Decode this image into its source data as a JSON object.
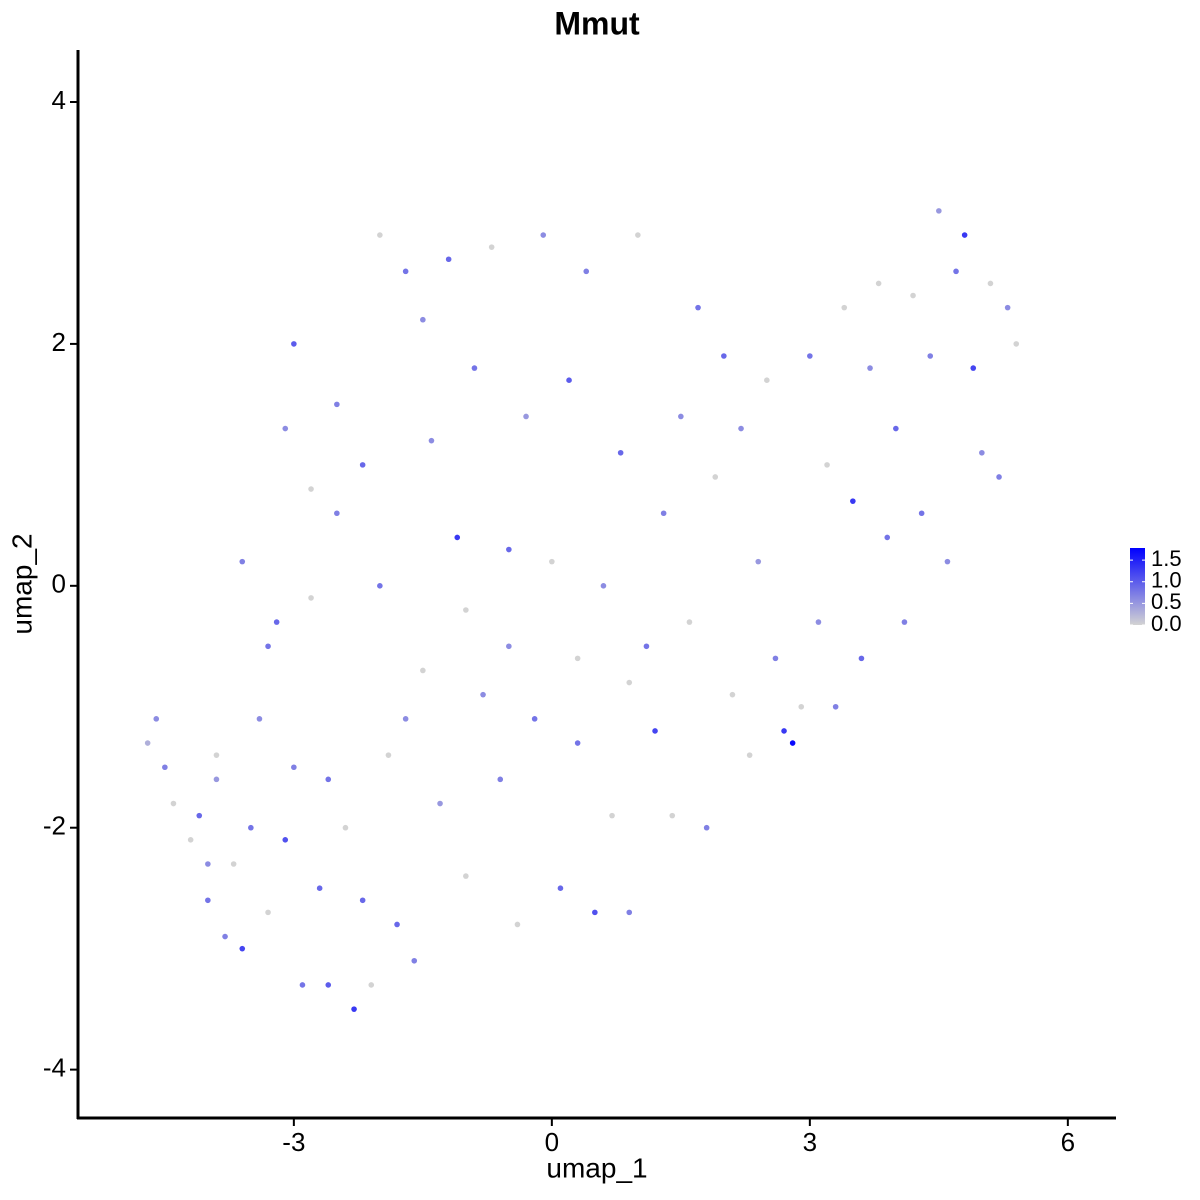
{
  "chart_data": {
    "type": "scatter",
    "title": "Mmut",
    "x_label": "umap_1",
    "y_label": "umap_2",
    "xlim": [
      -5.51,
      6.56
    ],
    "ylim": [
      -4.4,
      4.43
    ],
    "xticks": [
      -3,
      0,
      3,
      6
    ],
    "yticks": [
      -4,
      -2,
      0,
      2,
      4
    ],
    "grid": false,
    "color_low": "#d3d3d3",
    "color_high": "#0000ff",
    "colorbar_lim": [
      0,
      1.78
    ],
    "colorbar_ticks": [
      {
        "value": 0,
        "label": "0.0"
      },
      0.5,
      {
        "value": 1,
        "label": "1.0"
      },
      1.5
    ],
    "x": [
      -4.7,
      -4.6,
      -4.5,
      -4.4,
      -4.2,
      -4.1,
      -4.0,
      -3.9,
      -3.8,
      -3.7,
      -3.6,
      -3.5,
      -3.4,
      -3.3,
      -3.2,
      -3.1,
      -3.0,
      -2.9,
      -2.8,
      -2.7,
      -2.6,
      -2.5,
      -2.4,
      -2.3,
      -2.2,
      -2.1,
      -2.0,
      -1.9,
      -1.8,
      -1.7,
      -1.6,
      -1.5,
      -1.4,
      -1.3,
      -1.2,
      -1.1,
      -1.0,
      -0.9,
      -0.8,
      -0.7,
      -0.6,
      -0.5,
      -0.4,
      -0.3,
      -0.2,
      -0.1,
      0,
      0.1,
      0.2,
      0.3,
      0.4,
      0.5,
      0.6,
      0.7,
      0.8,
      0.9,
      1.0,
      1.1,
      1.2,
      1.3,
      1.4,
      1.5,
      1.6,
      1.7,
      1.8,
      1.9,
      2.0,
      2.1,
      2.2,
      2.3,
      2.4,
      2.5,
      2.6,
      2.7,
      2.8,
      2.9,
      3.0,
      3.1,
      3.2,
      3.3,
      3.4,
      3.5,
      3.6,
      3.7,
      3.8,
      3.9,
      4.0,
      4.1,
      4.2,
      4.3,
      4.4,
      4.5,
      4.6,
      4.7,
      4.8,
      4.9,
      5.0,
      5.1,
      5.2,
      5.3,
      5.4,
      -3.0,
      -2.5,
      -2.0,
      -1.5,
      -3.1,
      -2.8,
      -3.6,
      -3.3,
      -2.2,
      -1.0,
      -0.5,
      0.3,
      0.9,
      -1.7,
      -2.6,
      -4.0,
      -3.9
    ],
    "y": [
      -1.3,
      -1.1,
      -1.5,
      -1.8,
      -2.1,
      -1.9,
      -2.6,
      -1.6,
      -2.9,
      -2.3,
      -3.0,
      -2.0,
      -1.1,
      -2.7,
      -0.3,
      -2.1,
      -1.5,
      -3.3,
      -0.1,
      -2.5,
      -3.3,
      0.6,
      -2.0,
      -3.5,
      -2.6,
      -3.3,
      0.0,
      -1.4,
      -2.8,
      2.6,
      -3.1,
      -0.7,
      1.2,
      -1.8,
      2.7,
      0.4,
      -2.4,
      1.8,
      -0.9,
      2.8,
      -1.6,
      0.3,
      -2.8,
      1.4,
      -1.1,
      2.9,
      0.2,
      -2.5,
      1.7,
      -0.6,
      2.6,
      -2.7,
      0.0,
      -1.9,
      1.1,
      -2.7,
      2.9,
      -0.5,
      -1.2,
      0.6,
      -1.9,
      1.4,
      -0.3,
      2.3,
      -2.0,
      0.9,
      1.9,
      -0.9,
      1.3,
      -1.4,
      0.2,
      1.7,
      -0.6,
      -1.2,
      -1.3,
      -1.0,
      1.9,
      -0.3,
      1.0,
      -1.0,
      2.3,
      0.7,
      -0.6,
      1.8,
      2.5,
      0.4,
      1.3,
      -0.3,
      2.4,
      0.6,
      1.9,
      3.1,
      0.2,
      2.6,
      2.9,
      1.8,
      1.1,
      2.5,
      0.9,
      2.3,
      2.0,
      2.0,
      1.5,
      2.9,
      2.2,
      1.3,
      0.8,
      0.2,
      -0.5,
      1.0,
      -0.2,
      -0.5,
      -1.3,
      -0.8,
      -1.1,
      -1.6,
      -2.3,
      -1.4
    ],
    "values": [
      0.3,
      0.6,
      0.7,
      0,
      0,
      0.9,
      0.8,
      0.5,
      0.7,
      0,
      1.2,
      0.8,
      0.6,
      0,
      0.9,
      1.1,
      0.7,
      0.8,
      0,
      0.9,
      1.0,
      0.7,
      0,
      1.3,
      0.9,
      0,
      0.8,
      0,
      0.9,
      0.8,
      0.7,
      0,
      0.6,
      0.5,
      0.9,
      1.3,
      0,
      0.8,
      0.6,
      0,
      0.7,
      0.9,
      0,
      0.5,
      0.8,
      0.6,
      0,
      0.9,
      1.0,
      0,
      0.7,
      1.1,
      0.6,
      0,
      0.9,
      0.7,
      0,
      0.8,
      1.2,
      0.7,
      0,
      0.6,
      0,
      0.8,
      0.7,
      0,
      0.9,
      0,
      0.6,
      0,
      0.5,
      0,
      0.7,
      1.3,
      1.7,
      0,
      0.8,
      0.6,
      0,
      0.7,
      0,
      1.3,
      0.9,
      0.6,
      0,
      0.8,
      0.9,
      0.7,
      0,
      0.8,
      0.7,
      0.5,
      0.6,
      0.8,
      1.3,
      1.2,
      0.6,
      0,
      0.7,
      0.6,
      0,
      1.0,
      0.7,
      0,
      0.6,
      0.6,
      0,
      0.7,
      0.8,
      0.9,
      0,
      0.6,
      0.8,
      0,
      0.6,
      0.8,
      0.6,
      0
    ]
  }
}
